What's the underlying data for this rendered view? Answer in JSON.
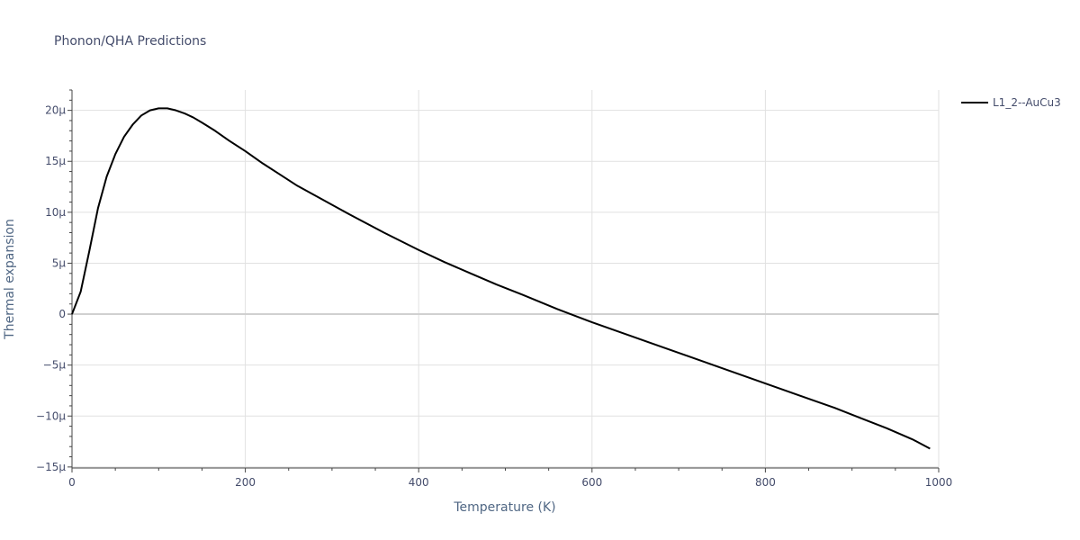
{
  "chart_data": {
    "type": "line",
    "title": "Phonon/QHA Predictions",
    "xlabel": "Temperature (K)",
    "ylabel": "Thermal expansion",
    "xlim": [
      0,
      1000
    ],
    "ylim": [
      -15.1,
      22
    ],
    "grid": true,
    "legend_position": "top-right",
    "x_ticks": [
      0,
      200,
      400,
      600,
      800,
      1000
    ],
    "x_tick_labels": [
      "0",
      "200",
      "400",
      "600",
      "800",
      "1000"
    ],
    "y_ticks": [
      -15,
      -10,
      -5,
      0,
      5,
      10,
      15,
      20
    ],
    "y_tick_labels": [
      "−15μ",
      "−10μ",
      "−5μ",
      "0",
      "5μ",
      "10μ",
      "15μ",
      "20μ"
    ],
    "series": [
      {
        "name": "L1_2--AuCu3",
        "color": "#000000",
        "x": [
          0,
          10,
          20,
          30,
          40,
          50,
          60,
          70,
          80,
          90,
          100,
          110,
          120,
          130,
          140,
          150,
          165,
          180,
          200,
          220,
          240,
          260,
          290,
          320,
          360,
          400,
          430,
          460,
          490,
          520,
          560,
          600,
          650,
          700,
          750,
          800,
          850,
          880,
          910,
          940,
          970,
          990
        ],
        "y": [
          0,
          2.2,
          6.2,
          10.4,
          13.5,
          15.7,
          17.4,
          18.6,
          19.5,
          20.0,
          20.2,
          20.2,
          20.0,
          19.7,
          19.3,
          18.8,
          18.0,
          17.1,
          16.0,
          14.8,
          13.7,
          12.6,
          11.2,
          9.8,
          8.0,
          6.3,
          5.1,
          4.0,
          2.9,
          1.9,
          0.5,
          -0.8,
          -2.3,
          -3.8,
          -5.3,
          -6.8,
          -8.3,
          -9.2,
          -10.2,
          -11.2,
          -12.3,
          -13.2
        ]
      }
    ]
  }
}
